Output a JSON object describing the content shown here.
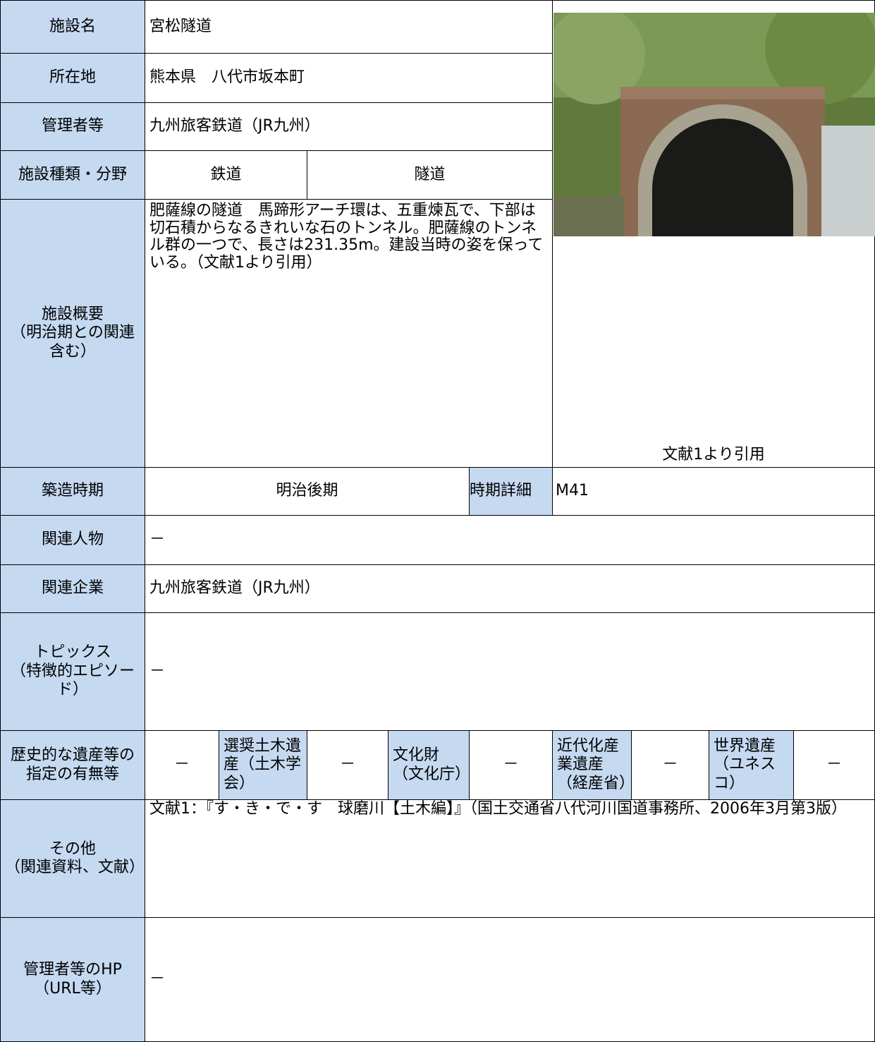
{
  "table": {
    "name": {
      "label": "施設名",
      "value": "宮松隧道"
    },
    "location": {
      "label": "所在地",
      "value": "熊本県　八代市坂本町"
    },
    "manager": {
      "label": "管理者等",
      "value": "九州旅客鉄道（JR九州）"
    },
    "kind": {
      "label": "施設種類・分野",
      "values": [
        "鉄道",
        "隧道"
      ]
    },
    "summary": {
      "label": "施設概要\n（明治期との関連含む）",
      "value": "肥薩線の隧道　馬蹄形アーチ環は、五重煉瓦で、下部は切石積からなるきれいな石のトンネル。肥薩線のトンネル群の一つで、長さは231.35m。建設当時の姿を保っている。（文献1より引用）"
    },
    "photo_caption": "文献1より引用",
    "period": {
      "label": "築造時期",
      "value": "明治後期",
      "detail_label": "時期詳細",
      "detail": "M41"
    },
    "person": {
      "label": "関連人物",
      "value": "－"
    },
    "company": {
      "label": "関連企業",
      "value": "九州旅客鉄道（JR九州）"
    },
    "topics": {
      "label": "トピックス\n（特徴的エピソード）",
      "value": "－"
    },
    "heritage": {
      "label": "歴史的な遺産等の指定の有無等",
      "cells": [
        "－",
        "選奨土木遺産（土木学会）",
        "－",
        "文化財（文化庁）",
        "－",
        "近代化産業遺産（経産省）",
        "－",
        "世界遺産（ユネスコ）",
        "－"
      ]
    },
    "other": {
      "label": "その他\n（関連資料、文献）",
      "value": "文献1：『す・き・で・す　球磨川【土木編】』（国土交通省八代河川国道事務所、2006年3月第3版）"
    },
    "hp": {
      "label": "管理者等のHP\n（URL等）",
      "value": "－"
    }
  }
}
